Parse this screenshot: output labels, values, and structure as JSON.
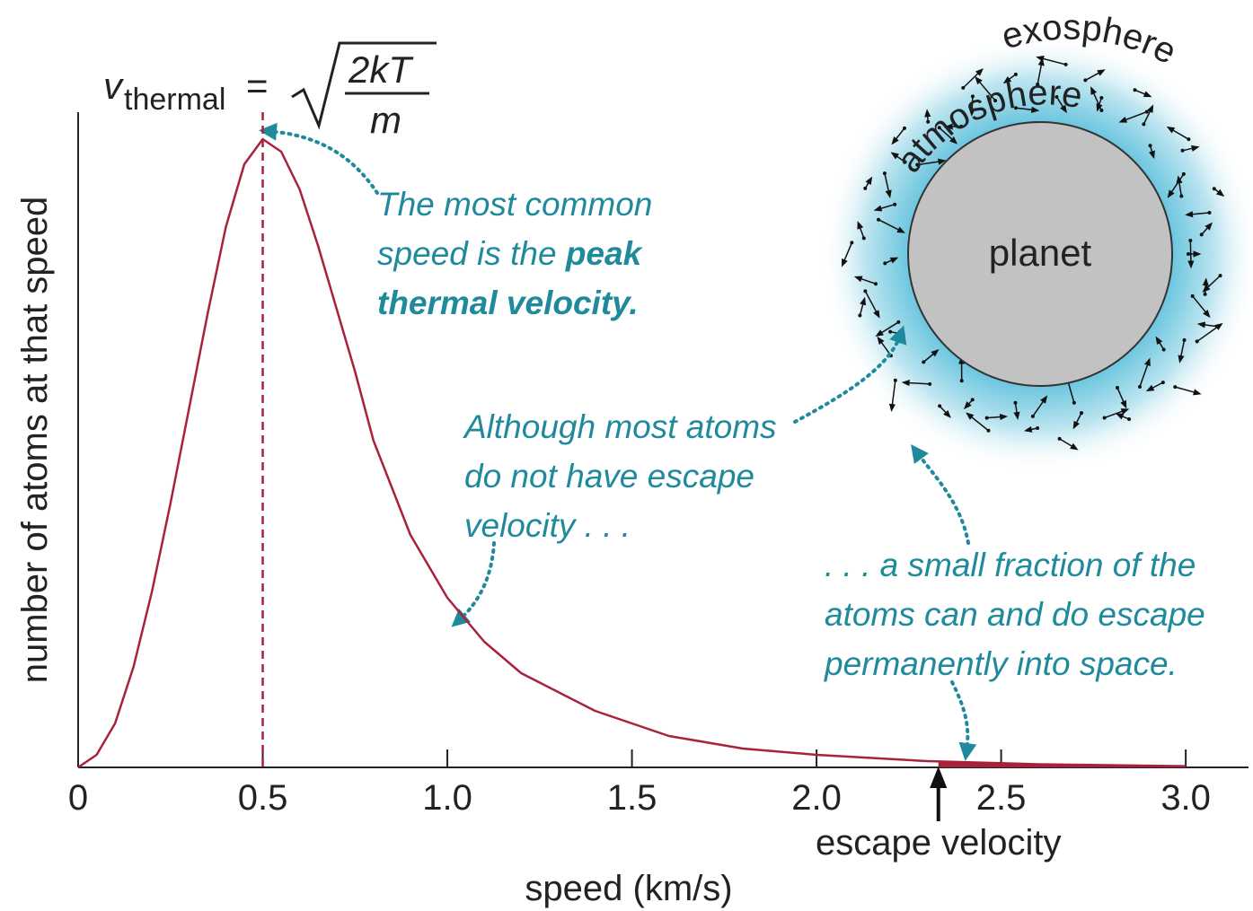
{
  "chart_data": {
    "type": "line",
    "x": [
      0,
      0.05,
      0.1,
      0.15,
      0.2,
      0.25,
      0.3,
      0.35,
      0.4,
      0.45,
      0.5,
      0.55,
      0.6,
      0.65,
      0.7,
      0.75,
      0.8,
      0.9,
      1.0,
      1.1,
      1.2,
      1.4,
      1.6,
      1.8,
      2.0,
      2.3,
      2.6,
      3.0
    ],
    "values": [
      0,
      0.02,
      0.07,
      0.16,
      0.28,
      0.42,
      0.57,
      0.72,
      0.86,
      0.96,
      1.0,
      0.98,
      0.92,
      0.83,
      0.73,
      0.63,
      0.52,
      0.37,
      0.27,
      0.2,
      0.15,
      0.09,
      0.05,
      0.03,
      0.02,
      0.01,
      0.005,
      0.002
    ],
    "color": "#a8223c",
    "xlim": [
      0,
      3.17
    ],
    "ylim": [
      0,
      1
    ],
    "xticks": [
      0,
      0.5,
      {
        "value": 1,
        "label": "1.0"
      },
      1.5,
      {
        "value": 2,
        "label": "2.0"
      },
      2.5,
      {
        "value": 3,
        "label": "3.0"
      }
    ],
    "xlabel": "speed (km/s)",
    "ylabel": "number of atoms at that speed",
    "peak_x": 0.5,
    "escape_velocity": {
      "value": 2.33,
      "label": "escape velocity"
    },
    "formula": {
      "symbol": "v",
      "subscript": "thermal",
      "equals": "=",
      "numerator": "2kT",
      "denominator": "m"
    },
    "annotations": [
      {
        "lines": [
          [
            {
              "text": "The most common",
              "bold": false
            }
          ],
          [
            {
              "text": "speed is the ",
              "bold": false
            },
            {
              "text": "peak",
              "bold": true
            }
          ],
          [
            {
              "text": "thermal velocity.",
              "bold": true
            }
          ]
        ]
      },
      {
        "lines": [
          [
            {
              "text": "Although most atoms",
              "bold": false
            }
          ],
          [
            {
              "text": "do not have escape",
              "bold": false
            }
          ],
          [
            {
              "text": "velocity . . .",
              "bold": false
            }
          ]
        ]
      },
      {
        "lines": [
          [
            {
              "text": ". . . a small fraction of the",
              "bold": false
            }
          ],
          [
            {
              "text": "atoms can and do escape",
              "bold": false
            }
          ],
          [
            {
              "text": "permanently into space.",
              "bold": false
            }
          ]
        ]
      }
    ],
    "diagram": {
      "planet": "planet",
      "atmosphere": "atmosphere",
      "exosphere": "exosphere"
    }
  }
}
